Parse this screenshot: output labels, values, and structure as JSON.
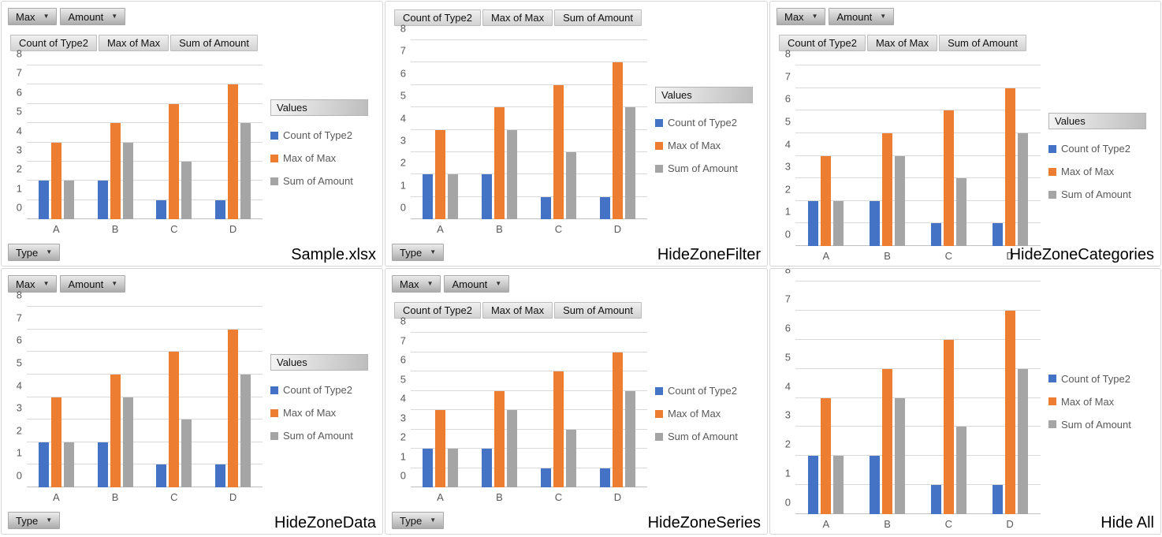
{
  "app": {
    "description": "Six Excel pivot-chart variants showing hide-zone options"
  },
  "filter_buttons": [
    {
      "label": "Max"
    },
    {
      "label": "Amount"
    }
  ],
  "field_buttons": [
    "Count of Type2",
    "Max of Max",
    "Sum of Amount"
  ],
  "legend": {
    "header": "Values",
    "items": [
      {
        "label": "Count of Type2",
        "color": "#4472C4"
      },
      {
        "label": "Max of Max",
        "color": "#ED7D31"
      },
      {
        "label": "Sum of Amount",
        "color": "#A5A5A5"
      }
    ]
  },
  "axis_button": {
    "label": "Type"
  },
  "colors": {
    "series_blue": "#4472C4",
    "series_orange": "#ED7D31",
    "series_gray": "#A5A5A5",
    "axis_text": "#595959",
    "gridline": "#D9D9D9"
  },
  "chart_data": {
    "type": "bar",
    "title": "",
    "xlabel": "",
    "ylabel": "",
    "categories": [
      "A",
      "B",
      "C",
      "D"
    ],
    "series": [
      {
        "name": "Count of Type2",
        "color": "#4472C4",
        "values": [
          2,
          2,
          1,
          1
        ]
      },
      {
        "name": "Max of Max",
        "color": "#ED7D31",
        "values": [
          4,
          5,
          6,
          7
        ]
      },
      {
        "name": "Sum of Amount",
        "color": "#A5A5A5",
        "values": [
          2,
          4,
          3,
          5
        ]
      }
    ],
    "ylim": [
      0,
      8
    ],
    "ytick_step": 1,
    "grid": true,
    "legend_position": "right"
  },
  "panels": [
    {
      "label": "Sample.xlsx",
      "show_filter_buttons": true,
      "show_field_buttons": true,
      "show_legend_header": true,
      "show_axis_button": true
    },
    {
      "label": "HideZoneFilter",
      "show_filter_buttons": false,
      "show_field_buttons": true,
      "show_legend_header": true,
      "show_axis_button": true
    },
    {
      "label": "HideZoneCategories",
      "show_filter_buttons": true,
      "show_field_buttons": true,
      "show_legend_header": true,
      "show_axis_button": false
    },
    {
      "label": "HideZoneData",
      "show_filter_buttons": true,
      "show_field_buttons": false,
      "show_legend_header": true,
      "show_axis_button": true
    },
    {
      "label": "HideZoneSeries",
      "show_filter_buttons": true,
      "show_field_buttons": true,
      "show_legend_header": false,
      "show_axis_button": true
    },
    {
      "label": "Hide All",
      "show_filter_buttons": false,
      "show_field_buttons": false,
      "show_legend_header": false,
      "show_axis_button": false
    }
  ]
}
